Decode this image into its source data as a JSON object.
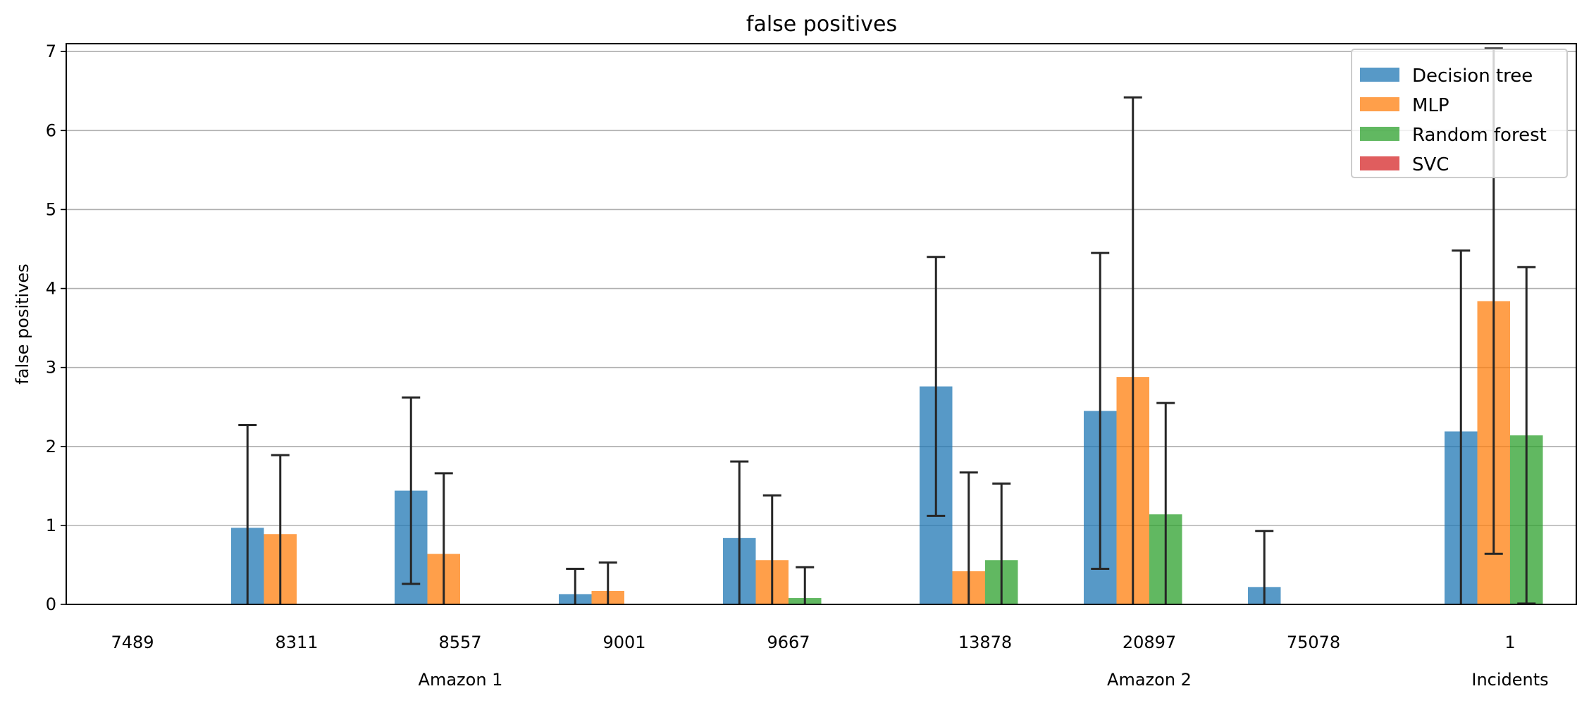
{
  "chart_data": {
    "type": "bar",
    "title": "false positives",
    "ylabel": "false positives",
    "xlabel": "",
    "ylim": [
      0,
      7.1
    ],
    "yticks": [
      0,
      1,
      2,
      3,
      4,
      5,
      6,
      7
    ],
    "grid": "y",
    "legend_position": "top-right",
    "categories": [
      "7489",
      "8311",
      "8557",
      "9001",
      "9667",
      "13878",
      "20897",
      "75078",
      "1"
    ],
    "groups": [
      {
        "label": "Amazon 1",
        "categories": [
          "7489",
          "8311",
          "8557",
          "9001",
          "9667"
        ]
      },
      {
        "label": "Amazon 2",
        "categories": [
          "13878",
          "20897",
          "75078"
        ]
      },
      {
        "label": "Incidents",
        "categories": [
          "1"
        ]
      }
    ],
    "series": [
      {
        "name": "Decision tree",
        "color": "#1f77b4",
        "values": [
          0,
          0.97,
          1.44,
          0.13,
          0.84,
          2.76,
          2.45,
          0.22,
          2.19
        ],
        "errors": [
          0,
          1.3,
          1.18,
          0.32,
          0.97,
          1.64,
          2.0,
          0.71,
          2.29
        ]
      },
      {
        "name": "MLP",
        "color": "#ff7f0e",
        "values": [
          0,
          0.89,
          0.64,
          0.17,
          0.56,
          0.42,
          2.88,
          0,
          3.84
        ],
        "errors": [
          0,
          1.0,
          1.02,
          0.36,
          0.82,
          1.25,
          3.54,
          0,
          3.2
        ]
      },
      {
        "name": "Random forest",
        "color": "#2ca02c",
        "values": [
          0,
          0,
          0,
          0,
          0.08,
          0.56,
          1.14,
          0,
          2.14
        ],
        "errors": [
          0,
          0,
          0,
          0,
          0.39,
          0.97,
          1.41,
          0,
          2.13
        ]
      },
      {
        "name": "SVC",
        "color": "#d62728",
        "values": [
          0,
          0,
          0,
          0,
          0,
          0,
          0,
          0,
          0
        ],
        "errors": [
          0,
          0,
          0,
          0,
          0,
          0,
          0,
          0,
          0
        ]
      }
    ]
  }
}
